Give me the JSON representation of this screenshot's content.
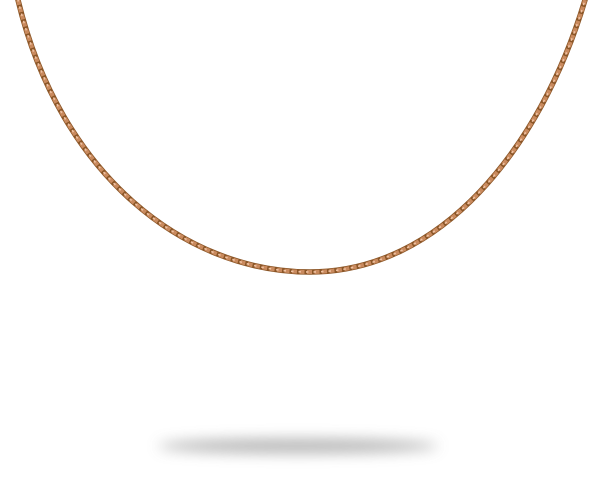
{
  "image": {
    "subject": "necklace",
    "colors": {
      "chain_base": "#c98a5e",
      "chain_dark": "#8a5526",
      "chain_highlight": "#f0c2a2",
      "shadow": "#9a9a9a",
      "background": "#ffffff"
    }
  }
}
